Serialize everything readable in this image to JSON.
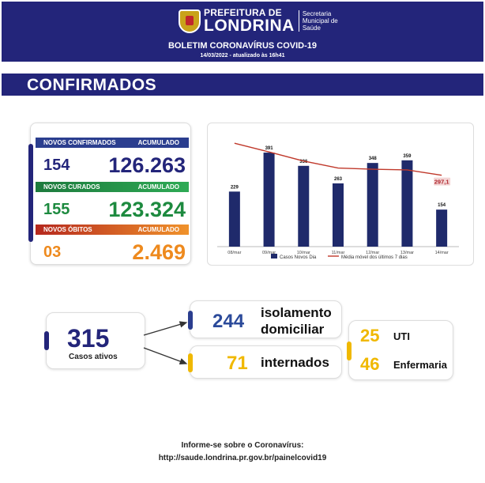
{
  "header": {
    "prefeitura": "PREFEITURA DE",
    "londrina": "LONDRINA",
    "secretaria": [
      "Secretaria",
      "Municipal de",
      "Saúde"
    ],
    "bulletin": "BOLETIM CORONAVÍRUS COVID-19",
    "date": "14/03/2022 - atualizado às 16h41"
  },
  "section": {
    "title": "CONFIRMADOS"
  },
  "stats": {
    "confirmed": {
      "label": "NOVOS CONFIRMADOS",
      "accum_label": "ACUMULADO",
      "new": "154",
      "total": "126.263"
    },
    "recovered": {
      "label": "NOVOS CURADOS",
      "accum_label": "ACUMULADO",
      "new": "155",
      "total": "123.324"
    },
    "deaths": {
      "label": "NOVOS ÓBITOS",
      "accum_label": "ACUMULADO",
      "new": "03",
      "total": "2.469"
    }
  },
  "chart_data": {
    "type": "bar",
    "categories": [
      "08/mar",
      "09/mar",
      "10/mar",
      "11/mar",
      "12/mar",
      "13/mar",
      "14/mar"
    ],
    "series": [
      {
        "name": "Casos Novos Dia",
        "type": "bar",
        "values": [
          229,
          391,
          336,
          263,
          348,
          359,
          154
        ],
        "labels": [
          "229",
          "391",
          "336",
          "263",
          "348",
          "359",
          "154"
        ],
        "color": "#1f2a6b"
      },
      {
        "name": "Média móvel dos últimos 7 dias",
        "type": "line",
        "values": [
          430,
          394,
          356,
          327,
          322,
          319,
          297.1
        ],
        "last_label": "297,1",
        "color": "#c0392b"
      }
    ],
    "ylim": [
      0,
      480
    ]
  },
  "active": {
    "count": "315",
    "label": "Casos ativos",
    "isolation": {
      "value": "244",
      "label_line1": "isolamento",
      "label_line2": "domiciliar"
    },
    "hospital": {
      "value": "71",
      "label": "internados"
    },
    "uti": {
      "value": "25",
      "label": "UTI"
    },
    "ward": {
      "value": "46",
      "label": "Enfermaria"
    }
  },
  "colors": {
    "navy": "#23257a",
    "blue": "#2b3e8f",
    "green": "#1d8a3f",
    "orange": "#ee8a1e",
    "yellow": "#f0b800"
  },
  "footer": {
    "line1": "Informe-se sobre o Coronavírus:",
    "line2": "http://saude.londrina.pr.gov.br/painelcovid19"
  }
}
